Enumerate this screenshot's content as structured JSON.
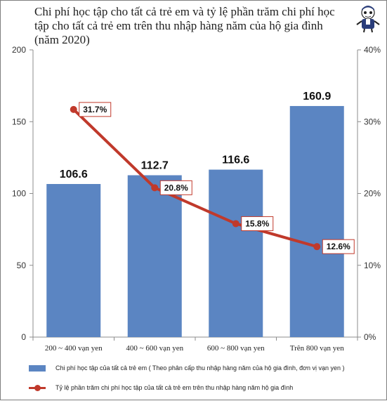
{
  "chart_data": {
    "type": "bar",
    "title": "Chi phí học tập cho tất cả trẻ em và tỷ lệ phần trăm chi phí học\ntập cho tất cả trẻ em trên thu nhập hàng năm của hộ gia đình\n(năm 2020)",
    "categories": [
      "200 ~ 400 vạn yen",
      "400 ~ 600 vạn yen",
      "600 ~ 800 vạn yen",
      "Trên 800 vạn yen"
    ],
    "series": [
      {
        "name": "Chi phí học tập của tất cả trẻ em ( Theo phân cấp thu nhập hàng năm của hộ gia đình, đơn vị vạn yen )",
        "type": "bar",
        "axis": "left",
        "values": [
          106.6,
          112.7,
          116.6,
          160.9
        ],
        "labels": [
          "106.6",
          "112.7",
          "116.6",
          "160.9"
        ],
        "color": "#5b85c2"
      },
      {
        "name": "Tỷ lệ phần trăm chi phí học tập của tất cả trẻ em trên thu nhập hàng năm hộ gia đình",
        "type": "line",
        "axis": "right",
        "values": [
          31.7,
          20.8,
          15.8,
          12.6
        ],
        "labels": [
          "31.7%",
          "20.8%",
          "15.8%",
          "12.6%"
        ],
        "color": "#c0392b"
      }
    ],
    "y_left": {
      "range": [
        0,
        200
      ],
      "ticks": [
        "0",
        "50",
        "100",
        "150",
        "200"
      ]
    },
    "y_right": {
      "range": [
        0,
        40
      ],
      "ticks": [
        "0%",
        "10%",
        "20%",
        "30%",
        "40%"
      ]
    },
    "grid": false,
    "legend_position": "bottom"
  }
}
